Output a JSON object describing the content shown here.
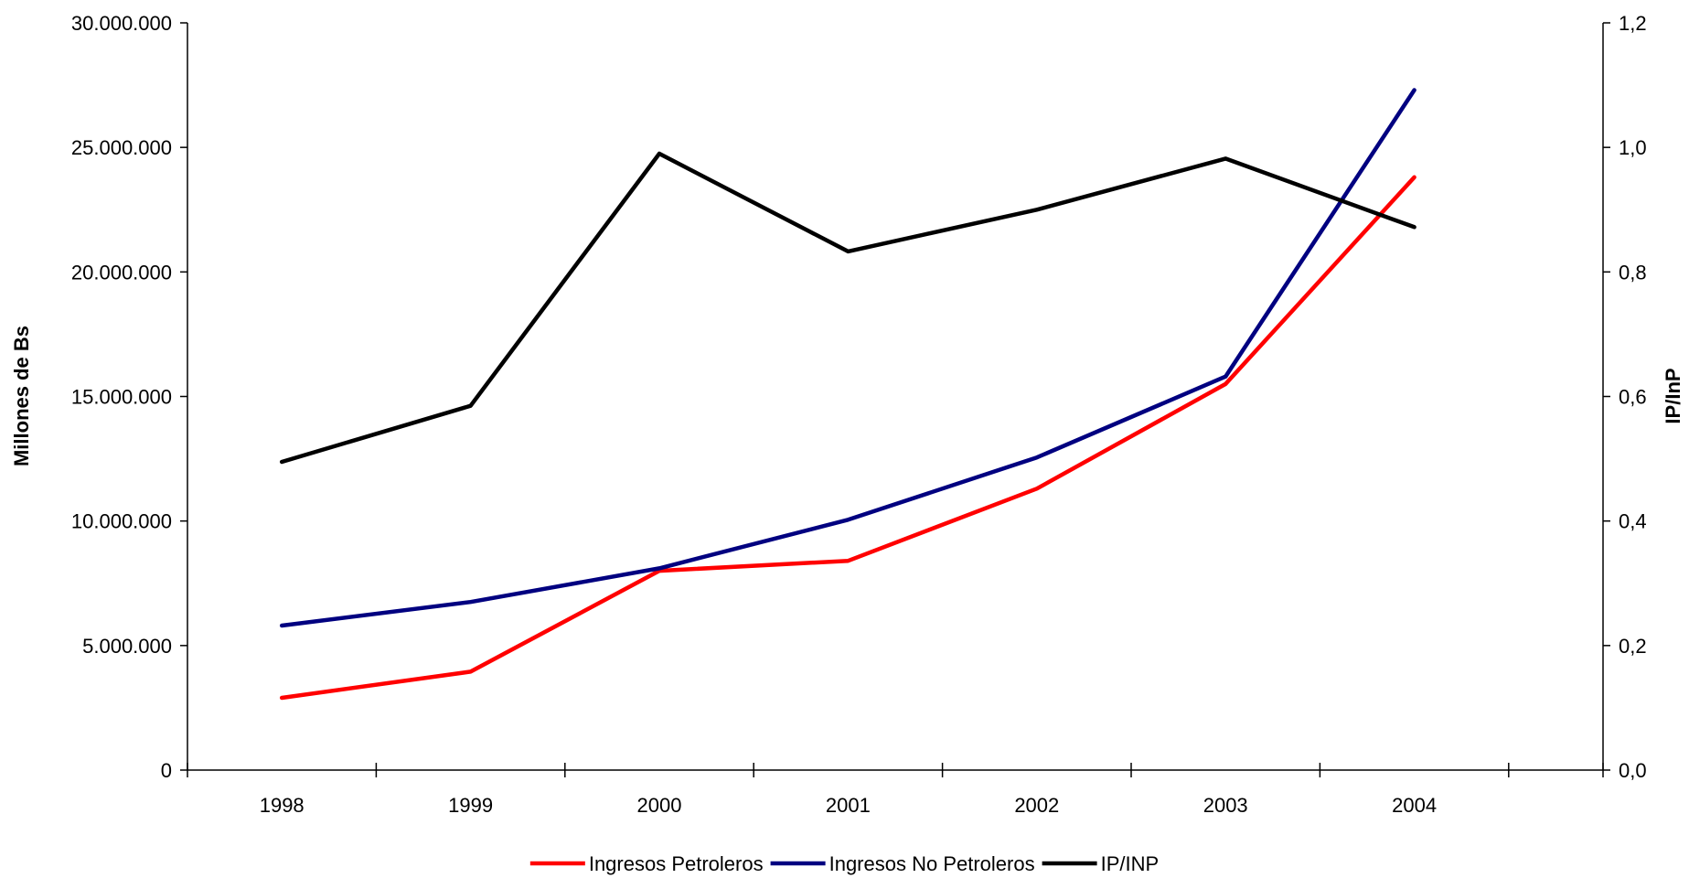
{
  "chart_data": {
    "type": "line",
    "categories": [
      "1998",
      "1999",
      "2000",
      "2001",
      "2002",
      "2003",
      "2004"
    ],
    "series": [
      {
        "name": "Ingresos Petroleros",
        "axis": "left",
        "color": "#ff0000",
        "values": [
          2900000,
          3950000,
          8000000,
          8400000,
          11300000,
          15500000,
          23800000
        ]
      },
      {
        "name": "Ingresos No Petroleros",
        "axis": "left",
        "color": "#000080",
        "values": [
          5800000,
          6750000,
          8100000,
          10050000,
          12550000,
          15800000,
          27300000
        ]
      },
      {
        "name": "IP/INP",
        "axis": "right",
        "color": "#000000",
        "values": [
          0.495,
          0.585,
          0.99,
          0.833,
          0.9,
          0.982,
          0.872
        ]
      }
    ],
    "ylabel": "Millones de Bs",
    "ylim": [
      0,
      30000000
    ],
    "yticks": [
      "0",
      "5.000.000",
      "10.000.000",
      "15.000.000",
      "20.000.000",
      "25.000.000",
      "30.000.000"
    ],
    "y2label": "IP/InP",
    "y2lim": [
      0,
      1.2
    ],
    "y2ticks": [
      "0,0",
      "0,2",
      "0,4",
      "0,6",
      "0,8",
      "1,0",
      "1,2"
    ],
    "grid": false,
    "legend_position": "bottom"
  }
}
